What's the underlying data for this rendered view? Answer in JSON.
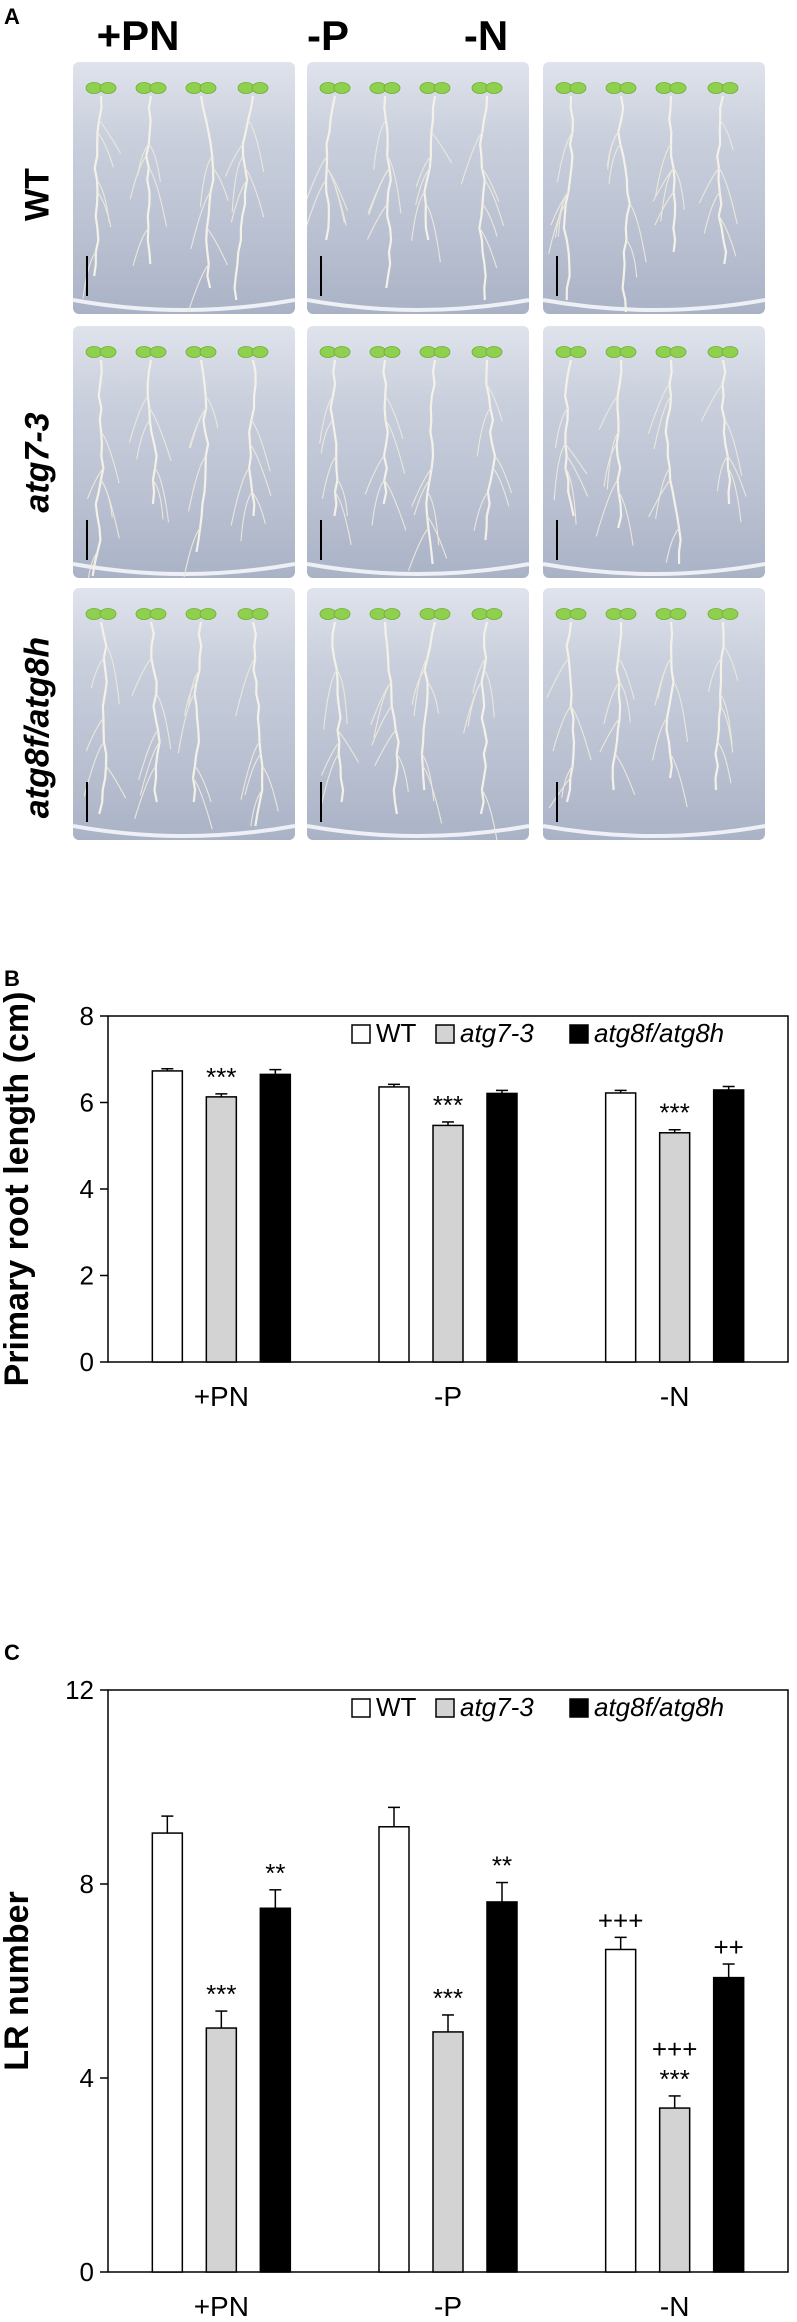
{
  "panelA": {
    "letter": "A",
    "columns": [
      "+PN",
      "-P",
      "-N"
    ],
    "rows": [
      {
        "label": "WT",
        "italic": false
      },
      {
        "label": "atg7-3",
        "italic": true
      },
      {
        "label": "atg8f/atg8h",
        "italic": true
      }
    ]
  },
  "panelB": {
    "letter": "B",
    "chart_data": {
      "type": "bar",
      "categories": [
        "+PN",
        "-P",
        "-N"
      ],
      "ylabel": "Primary root length (cm)",
      "ylim": [
        0,
        8
      ],
      "yticks": [
        0,
        2,
        4,
        6,
        8
      ],
      "legend_position": "top-right",
      "series": [
        {
          "name": "WT",
          "italic": false,
          "color": "#ffffff",
          "values": [
            6.73,
            6.36,
            6.22
          ],
          "errors": [
            0.05,
            0.06,
            0.06
          ],
          "annotations": [
            "",
            "",
            ""
          ]
        },
        {
          "name": "atg7-3",
          "italic": true,
          "color": "#d3d3d3",
          "values": [
            6.13,
            5.47,
            5.3
          ],
          "errors": [
            0.07,
            0.08,
            0.07
          ],
          "annotations": [
            "***",
            "***",
            "***"
          ]
        },
        {
          "name": "atg8f/atg8h",
          "italic": true,
          "color": "#000000",
          "values": [
            6.65,
            6.21,
            6.29
          ],
          "errors": [
            0.11,
            0.07,
            0.08
          ],
          "annotations": [
            "",
            "",
            ""
          ]
        }
      ]
    }
  },
  "panelC": {
    "letter": "C",
    "chart_data": {
      "type": "bar",
      "categories": [
        "+PN",
        "-P",
        "-N"
      ],
      "ylabel": "LR number",
      "ylim": [
        0,
        12
      ],
      "yticks": [
        0,
        4,
        8,
        12
      ],
      "legend_position": "top-right",
      "series": [
        {
          "name": "WT",
          "italic": false,
          "color": "#ffffff",
          "values": [
            9.05,
            9.18,
            6.65
          ],
          "errors": [
            0.35,
            0.4,
            0.25
          ],
          "annotations": [
            "",
            "",
            "+++"
          ]
        },
        {
          "name": "atg7-3",
          "italic": true,
          "color": "#d3d3d3",
          "values": [
            5.03,
            4.95,
            3.38
          ],
          "errors": [
            0.35,
            0.35,
            0.25
          ],
          "annotations": [
            "***",
            "***",
            "+++\n***"
          ]
        },
        {
          "name": "atg8f/atg8h",
          "italic": true,
          "color": "#000000",
          "values": [
            7.5,
            7.63,
            6.07
          ],
          "errors": [
            0.38,
            0.4,
            0.28
          ],
          "annotations": [
            "**",
            "**",
            "++"
          ]
        }
      ]
    }
  }
}
